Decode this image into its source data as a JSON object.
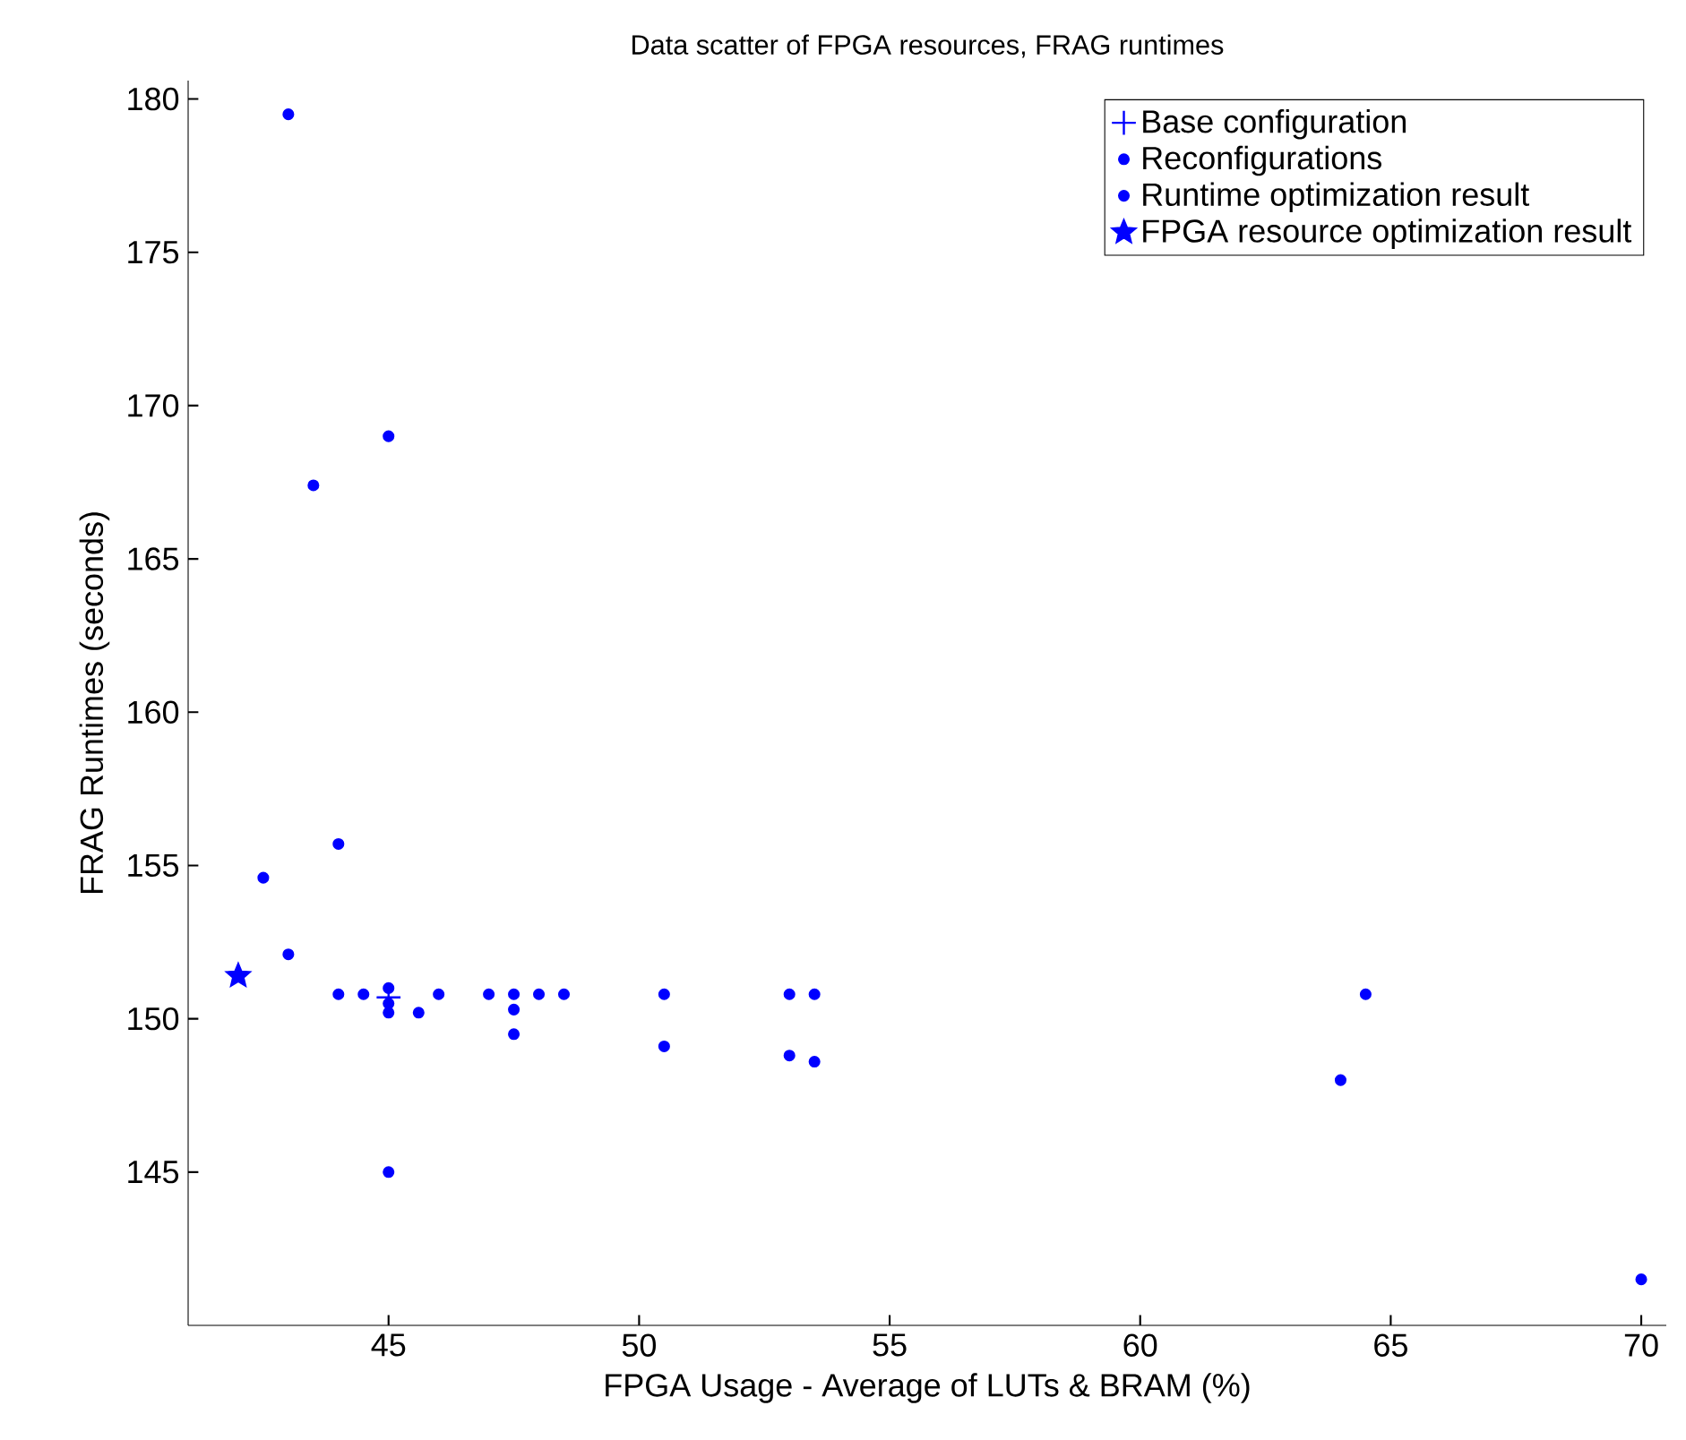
{
  "chart_data": {
    "type": "scatter",
    "title": "Data scatter of FPGA resources, FRAG runtimes",
    "xlabel": "FPGA Usage - Average of LUTs & BRAM (%)",
    "ylabel": "FRAG Runtimes (seconds)",
    "xlim": [
      41,
      70.5
    ],
    "ylim": [
      140,
      180.6
    ],
    "xticks": [
      45,
      50,
      55,
      60,
      65,
      70
    ],
    "yticks": [
      145,
      150,
      155,
      160,
      165,
      170,
      175,
      180
    ],
    "grid": false,
    "legend": "top right",
    "series": [
      {
        "name": "Base configuration",
        "color": "#0000ff",
        "marker": "cross",
        "x": [
          45
        ],
        "values": [
          150.7
        ]
      },
      {
        "name": "Reconfigurations",
        "color": "#0000ff",
        "marker": "circle",
        "x": [
          42.5,
          43,
          44,
          44,
          44.5,
          45,
          45,
          45,
          45.6,
          46,
          47,
          47.5,
          47.5,
          47.5,
          48,
          48.5,
          50.5,
          50.5,
          45,
          43,
          45,
          43.5,
          53,
          53.5,
          53,
          53.5,
          64.5,
          64
        ],
        "values": [
          154.6,
          152.1,
          155.7,
          150.8,
          150.8,
          151.0,
          150.5,
          150.2,
          150.2,
          150.8,
          150.8,
          150.8,
          150.3,
          149.5,
          150.8,
          150.8,
          150.8,
          149.1,
          145.0,
          179.5,
          169.0,
          167.4,
          150.8,
          150.8,
          148.8,
          148.6,
          150.8,
          148.0
        ]
      },
      {
        "name": "Runtime optimization result",
        "color": "#0000ff",
        "marker": "circle",
        "x": [
          70
        ],
        "values": [
          141.5
        ]
      },
      {
        "name": "FPGA resource optimization result",
        "color": "#0000ff",
        "marker": "star",
        "x": [
          42
        ],
        "values": [
          151.4
        ]
      }
    ]
  }
}
